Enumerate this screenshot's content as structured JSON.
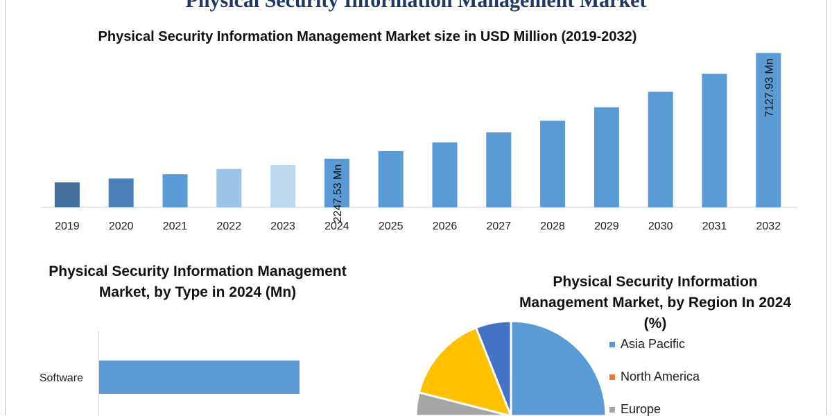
{
  "header": {
    "title": "Physical Security Information Management Market"
  },
  "chart_data": [
    {
      "type": "bar",
      "title": "Physical Security Information Management Market size in USD Million (2019-2032)",
      "categories": [
        "2019",
        "2020",
        "2021",
        "2022",
        "2023",
        "2024",
        "2025",
        "2026",
        "2027",
        "2028",
        "2029",
        "2030",
        "2031",
        "2032"
      ],
      "values": [
        1150,
        1330,
        1530,
        1770,
        1950,
        2247.53,
        2596,
        2998,
        3463,
        4000,
        4620,
        5336,
        6163,
        7127.93
      ],
      "colors": [
        "#44709d",
        "#4a7fb8",
        "#5b9bd5",
        "#9dc3e6",
        "#bdd7ee",
        "#5b9bd5",
        "#5b9bd5",
        "#5b9bd5",
        "#5b9bd5",
        "#5b9bd5",
        "#5b9bd5",
        "#5b9bd5",
        "#5b9bd5",
        "#5b9bd5"
      ],
      "data_labels": {
        "2024": "2247.53 Mn",
        "2032": "7127.93 Mn"
      },
      "ylim": [
        0,
        7300
      ],
      "grid": false
    },
    {
      "type": "bar",
      "orientation": "horizontal",
      "title": "Physical Security Information Management Market, by Type in 2024 (Mn)",
      "categories": [
        "Software"
      ],
      "values": [
        1
      ],
      "color": "#5b9bd5"
    },
    {
      "type": "pie",
      "title": "Physical Security Information Management Market, by Region In 2024 (%)",
      "slices": [
        {
          "name": "Asia Pacific",
          "value": 45,
          "color": "#5b9bd5"
        },
        {
          "name": "North America",
          "value": 22,
          "color": "#ed7d31"
        },
        {
          "name": "Europe",
          "value": 12,
          "color": "#a5a5a5"
        },
        {
          "name": "",
          "value": 15,
          "color": "#ffc000"
        },
        {
          "name": "",
          "value": 6,
          "color": "#4472c4"
        }
      ],
      "legend": "right"
    }
  ]
}
